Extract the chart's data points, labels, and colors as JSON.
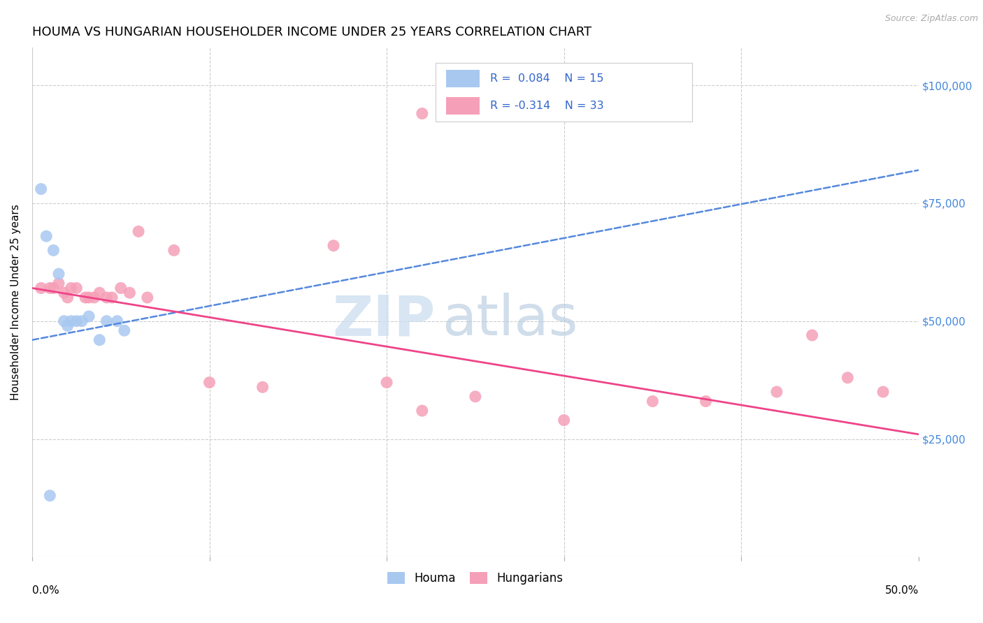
{
  "title": "HOUMA VS HUNGARIAN HOUSEHOLDER INCOME UNDER 25 YEARS CORRELATION CHART",
  "source": "Source: ZipAtlas.com",
  "ylabel": "Householder Income Under 25 years",
  "xlim": [
    0.0,
    0.5
  ],
  "ylim": [
    0,
    108000
  ],
  "ytick_vals": [
    25000,
    50000,
    75000,
    100000
  ],
  "ytick_labels": [
    "$25,000",
    "$50,000",
    "$75,000",
    "$100,000"
  ],
  "houma_color": "#a8c8f0",
  "hungarian_color": "#f5a0b8",
  "houma_line_color": "#5588dd",
  "hungarian_line_color": "#ee4488",
  "background_color": "#ffffff",
  "grid_color": "#cccccc",
  "title_fontsize": 13,
  "axis_label_fontsize": 11,
  "tick_fontsize": 11,
  "source_fontsize": 9,
  "legend_text_color": "#3366cc",
  "houma_x": [
    0.005,
    0.008,
    0.012,
    0.015,
    0.018,
    0.02,
    0.022,
    0.025,
    0.028,
    0.032,
    0.038,
    0.042,
    0.048,
    0.052,
    0.01
  ],
  "houma_y": [
    78000,
    68000,
    65000,
    60000,
    50000,
    49000,
    50000,
    50000,
    50000,
    51000,
    46000,
    50000,
    50000,
    48000,
    13000
  ],
  "hungarian_x": [
    0.005,
    0.01,
    0.012,
    0.015,
    0.018,
    0.02,
    0.022,
    0.025,
    0.03,
    0.032,
    0.035,
    0.038,
    0.042,
    0.045,
    0.05,
    0.055,
    0.06,
    0.065,
    0.1,
    0.13,
    0.17,
    0.2,
    0.22,
    0.25,
    0.3,
    0.35,
    0.38,
    0.42,
    0.44,
    0.46,
    0.48,
    0.22,
    0.08
  ],
  "hungarian_y": [
    57000,
    57000,
    57000,
    58000,
    56000,
    55000,
    57000,
    57000,
    55000,
    55000,
    55000,
    56000,
    55000,
    55000,
    57000,
    56000,
    69000,
    55000,
    37000,
    36000,
    66000,
    37000,
    31000,
    34000,
    29000,
    33000,
    33000,
    35000,
    47000,
    38000,
    35000,
    94000,
    65000
  ]
}
